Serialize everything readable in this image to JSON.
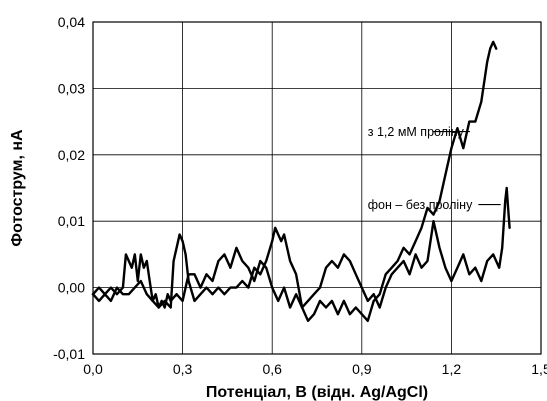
{
  "chart_data": {
    "type": "line",
    "xlabel": "Потенціал, В (відн. Ag/AgCl)",
    "ylabel": "Фотострум, нА",
    "xlim": [
      0.0,
      1.5
    ],
    "ylim": [
      -0.01,
      0.04
    ],
    "x_ticks": [
      0.0,
      0.3,
      0.6,
      0.9,
      1.2,
      1.5
    ],
    "y_ticks": [
      -0.01,
      0.0,
      0.01,
      0.02,
      0.03,
      0.04
    ],
    "x_tick_labels": [
      "0,0",
      "0,3",
      "0,6",
      "0,9",
      "1,2",
      "1,5"
    ],
    "y_tick_labels": [
      "-0,01",
      "0,00",
      "0,01",
      "0,02",
      "0,03",
      "0,04"
    ],
    "grid": true,
    "series": [
      {
        "color": "#000000",
        "x": [
          0.0,
          0.02,
          0.04,
          0.06,
          0.08,
          0.1,
          0.11,
          0.12,
          0.13,
          0.14,
          0.15,
          0.16,
          0.17,
          0.18,
          0.19,
          0.2,
          0.21,
          0.22,
          0.23,
          0.24,
          0.25,
          0.26,
          0.28,
          0.3,
          0.32,
          0.34,
          0.36,
          0.38,
          0.4,
          0.42,
          0.44,
          0.46,
          0.48,
          0.5,
          0.52,
          0.54,
          0.56,
          0.58,
          0.6,
          0.62,
          0.64,
          0.66,
          0.68,
          0.7,
          0.72,
          0.74,
          0.76,
          0.78,
          0.8,
          0.82,
          0.84,
          0.86,
          0.88,
          0.9,
          0.92,
          0.94,
          0.96,
          0.98,
          1.0,
          1.02,
          1.04,
          1.06,
          1.08,
          1.1,
          1.12,
          1.14,
          1.16,
          1.18,
          1.2,
          1.22,
          1.24,
          1.26,
          1.28,
          1.3,
          1.32,
          1.33,
          1.34,
          1.35
        ],
        "y": [
          -0.001,
          0.0,
          -0.001,
          0.0,
          -0.001,
          0.0,
          0.005,
          0.004,
          0.003,
          0.005,
          0.001,
          0.005,
          0.003,
          0.004,
          0.001,
          -0.002,
          -0.001,
          -0.003,
          -0.002,
          -0.003,
          -0.001,
          -0.002,
          -0.001,
          -0.002,
          0.002,
          0.002,
          0.0,
          0.002,
          0.001,
          0.004,
          0.005,
          0.003,
          0.006,
          0.004,
          0.003,
          0.001,
          0.004,
          0.003,
          0.0,
          -0.002,
          0.0,
          -0.003,
          -0.001,
          -0.003,
          -0.005,
          -0.004,
          -0.002,
          -0.003,
          -0.002,
          -0.004,
          -0.002,
          -0.004,
          -0.003,
          -0.004,
          -0.005,
          -0.002,
          -0.001,
          0.002,
          0.003,
          0.004,
          0.006,
          0.005,
          0.007,
          0.009,
          0.012,
          0.011,
          0.013,
          0.017,
          0.021,
          0.024,
          0.021,
          0.025,
          0.025,
          0.028,
          0.034,
          0.036,
          0.037,
          0.036
        ]
      },
      {
        "color": "#000000",
        "x": [
          0.0,
          0.02,
          0.04,
          0.06,
          0.08,
          0.1,
          0.12,
          0.14,
          0.16,
          0.18,
          0.2,
          0.22,
          0.24,
          0.26,
          0.27,
          0.28,
          0.29,
          0.3,
          0.31,
          0.32,
          0.34,
          0.36,
          0.38,
          0.4,
          0.42,
          0.44,
          0.46,
          0.48,
          0.5,
          0.52,
          0.54,
          0.56,
          0.58,
          0.6,
          0.61,
          0.62,
          0.63,
          0.64,
          0.66,
          0.68,
          0.7,
          0.72,
          0.74,
          0.76,
          0.78,
          0.8,
          0.82,
          0.84,
          0.86,
          0.88,
          0.9,
          0.92,
          0.94,
          0.96,
          0.98,
          1.0,
          1.02,
          1.04,
          1.06,
          1.08,
          1.1,
          1.12,
          1.14,
          1.16,
          1.18,
          1.2,
          1.22,
          1.24,
          1.26,
          1.28,
          1.3,
          1.32,
          1.34,
          1.36,
          1.37,
          1.38,
          1.385,
          1.39,
          1.395
        ],
        "y": [
          -0.001,
          -0.002,
          -0.001,
          -0.002,
          0.0,
          -0.001,
          -0.001,
          0.0,
          0.001,
          -0.001,
          -0.002,
          -0.003,
          -0.002,
          -0.003,
          0.004,
          0.006,
          0.008,
          0.007,
          0.005,
          0.001,
          -0.002,
          -0.001,
          0.0,
          -0.001,
          0.0,
          -0.001,
          0.0,
          0.0,
          0.001,
          0.0,
          0.003,
          0.002,
          0.004,
          0.007,
          0.009,
          0.008,
          0.007,
          0.008,
          0.004,
          0.002,
          -0.003,
          -0.002,
          -0.001,
          0.0,
          0.003,
          0.004,
          0.003,
          0.005,
          0.004,
          0.002,
          0.0,
          -0.002,
          -0.001,
          -0.003,
          0.0,
          0.002,
          0.003,
          0.004,
          0.002,
          0.005,
          0.003,
          0.004,
          0.01,
          0.006,
          0.003,
          0.001,
          0.003,
          0.005,
          0.002,
          0.003,
          0.001,
          0.004,
          0.005,
          0.003,
          0.006,
          0.013,
          0.015,
          0.012,
          0.009
        ]
      }
    ],
    "annotations": [
      {
        "text": "з 1,2 мМ проліну",
        "x": 0.92,
        "y": 0.0235,
        "leader_to": [
          1.14,
          0.0235
        ]
      },
      {
        "text": "фон – без проліну",
        "x": 0.92,
        "y": 0.0125,
        "leader_to": [
          1.365,
          0.0125
        ]
      }
    ]
  }
}
